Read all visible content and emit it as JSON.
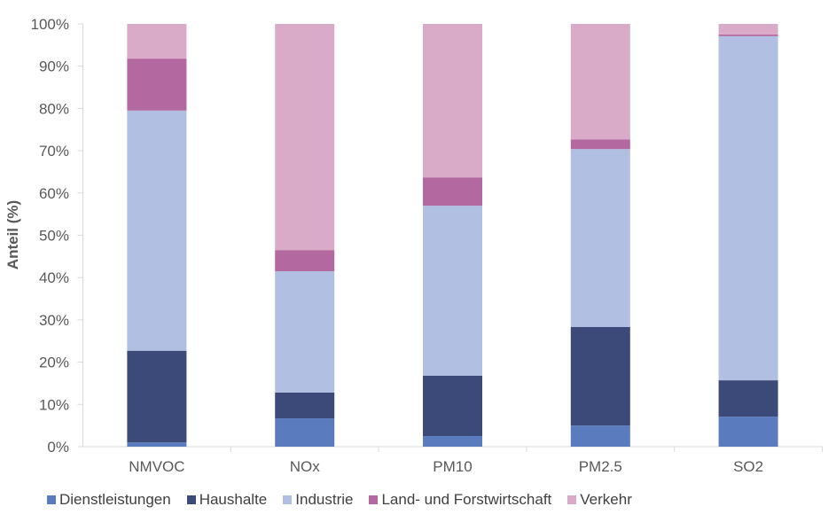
{
  "chart_data": {
    "type": "bar",
    "stacked": true,
    "percent_stacked": true,
    "title": "",
    "xlabel": "",
    "ylabel": "Anteil (%)",
    "ylim": [
      0,
      100
    ],
    "yticks": [
      "0%",
      "10%",
      "20%",
      "30%",
      "40%",
      "50%",
      "60%",
      "70%",
      "80%",
      "90%",
      "100%"
    ],
    "grid": true,
    "legend": "bottom",
    "categories": [
      "NMVOC",
      "NOx",
      "PM10",
      "PM2.5",
      "SO2"
    ],
    "series": [
      {
        "name": "Dienstleistungen",
        "color": "#5b7bbf",
        "values": [
          1.0,
          6.7,
          2.5,
          5.0,
          7.1
        ]
      },
      {
        "name": "Haushalte",
        "color": "#3b4a78",
        "values": [
          21.7,
          6.1,
          14.3,
          23.3,
          8.6
        ]
      },
      {
        "name": "Industrie",
        "color": "#b0bfe2",
        "values": [
          56.8,
          28.7,
          40.2,
          42.1,
          81.4
        ]
      },
      {
        "name": "Land- und Forstwirtschaft",
        "color": "#b3689f",
        "values": [
          12.3,
          5.0,
          6.7,
          2.3,
          0.4
        ]
      },
      {
        "name": "Verkehr",
        "color": "#d9abc8",
        "values": [
          8.2,
          53.5,
          36.3,
          27.3,
          2.5
        ]
      }
    ]
  }
}
